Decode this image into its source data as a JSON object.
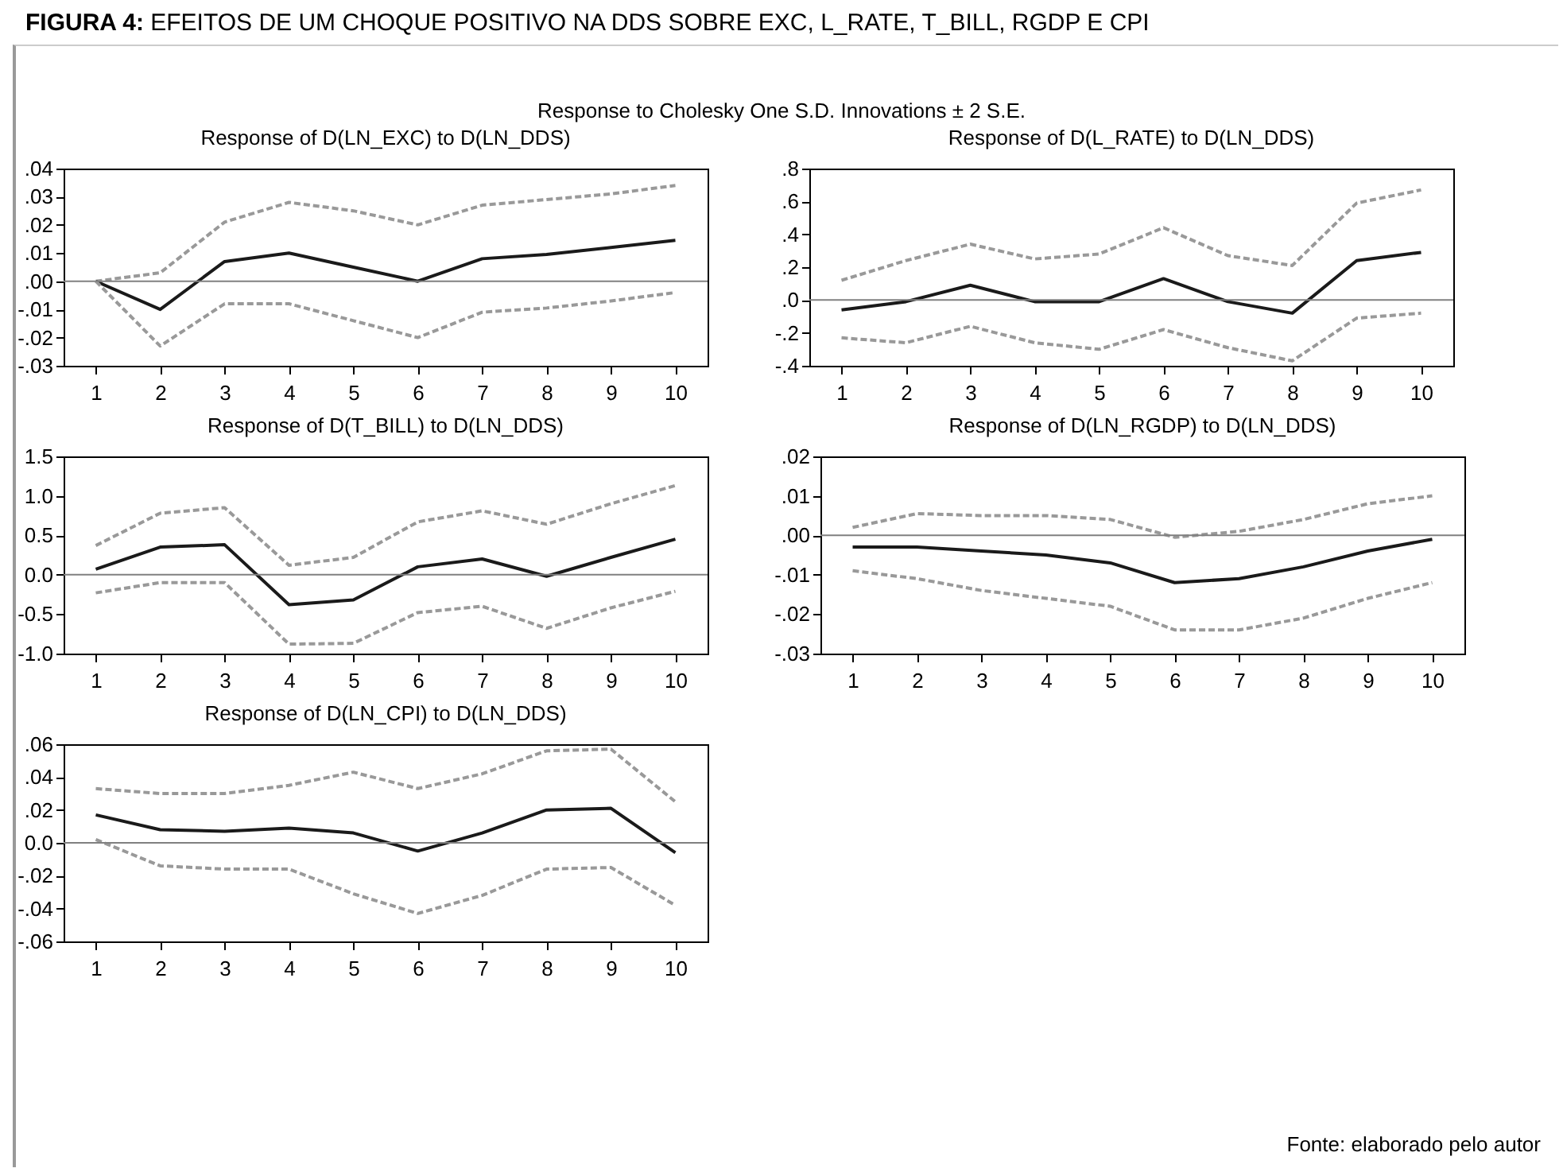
{
  "chart_data": [
    {
      "type": "line",
      "title": "Response of D(LN_EXC) to D(LN_DDS)",
      "annotations": [
        "FIGURA 4: EFEITOS DE UM CHOQUE POSITIVO NA DDS SOBRE EXC, L_RATE, T_BILL, RGDP E CPI",
        "Response to Cholesky One S.D. Innovations ± 2 S.E."
      ],
      "categories": [
        "1",
        "2",
        "3",
        "4",
        "5",
        "6",
        "7",
        "8",
        "9",
        "10"
      ],
      "ylim": [
        -0.03,
        0.04
      ],
      "yticks": [
        {
          "value": -0.03,
          "label": "-.03"
        },
        {
          "value": -0.02,
          "label": "-.02"
        },
        {
          "value": -0.01,
          "label": "-.01"
        },
        {
          "value": 0,
          "label": ".00"
        },
        {
          "value": 0.01,
          "label": ".01"
        },
        {
          "value": 0.02,
          "label": ".02"
        },
        {
          "value": 0.03,
          "label": ".03"
        },
        {
          "value": 0.04,
          "label": ".04"
        }
      ],
      "ref_lines": [
        {
          "axis": "y",
          "value": 0,
          "color": "#808080"
        }
      ],
      "series": [
        {
          "color": "#999999",
          "line_style": "dashed",
          "values": [
            0,
            0.003,
            0.021,
            0.028,
            0.025,
            0.02,
            0.027,
            0.029,
            0.031,
            0.034
          ]
        },
        {
          "color": "#1a1a1a",
          "line_style": "solid",
          "values": [
            0,
            -0.01,
            0.007,
            0.01,
            0.005,
            0.0,
            0.008,
            0.0095,
            0.012,
            0.0145
          ]
        },
        {
          "color": "#999999",
          "line_style": "dashed",
          "values": [
            0,
            -0.023,
            -0.008,
            -0.008,
            -0.014,
            -0.02,
            -0.011,
            -0.0095,
            -0.007,
            -0.004
          ]
        }
      ]
    },
    {
      "type": "line",
      "title": "Response of D(L_RATE) to D(LN_DDS)",
      "categories": [
        "1",
        "2",
        "3",
        "4",
        "5",
        "6",
        "7",
        "8",
        "9",
        "10"
      ],
      "ylim": [
        -0.4,
        0.8
      ],
      "yticks": [
        {
          "value": -0.4,
          "label": "-.4"
        },
        {
          "value": -0.2,
          "label": "-.2"
        },
        {
          "value": 0,
          "label": ".0"
        },
        {
          "value": 0.2,
          "label": ".2"
        },
        {
          "value": 0.4,
          "label": ".4"
        },
        {
          "value": 0.6,
          "label": ".6"
        },
        {
          "value": 0.8,
          "label": ".8"
        }
      ],
      "ref_lines": [
        {
          "axis": "y",
          "value": 0,
          "color": "#808080"
        }
      ],
      "series": [
        {
          "color": "#999999",
          "line_style": "dashed",
          "values": [
            0.12,
            0.24,
            0.34,
            0.25,
            0.28,
            0.44,
            0.27,
            0.21,
            0.59,
            0.67
          ]
        },
        {
          "color": "#1a1a1a",
          "line_style": "solid",
          "values": [
            -0.06,
            -0.01,
            0.09,
            -0.01,
            -0.01,
            0.13,
            -0.01,
            -0.08,
            0.24,
            0.29
          ]
        },
        {
          "color": "#999999",
          "line_style": "dashed",
          "values": [
            -0.23,
            -0.26,
            -0.16,
            -0.26,
            -0.3,
            -0.18,
            -0.29,
            -0.37,
            -0.11,
            -0.08
          ]
        }
      ]
    },
    {
      "type": "line",
      "title": "Response of D(T_BILL) to D(LN_DDS)",
      "categories": [
        "1",
        "2",
        "3",
        "4",
        "5",
        "6",
        "7",
        "8",
        "9",
        "10"
      ],
      "ylim": [
        -1.0,
        1.5
      ],
      "yticks": [
        {
          "value": -1.0,
          "label": "-1.0"
        },
        {
          "value": -0.5,
          "label": "-0.5"
        },
        {
          "value": 0,
          "label": "0.0"
        },
        {
          "value": 0.5,
          "label": "0.5"
        },
        {
          "value": 1.0,
          "label": "1.0"
        },
        {
          "value": 1.5,
          "label": "1.5"
        }
      ],
      "ref_lines": [
        {
          "axis": "y",
          "value": 0,
          "color": "#808080"
        }
      ],
      "series": [
        {
          "color": "#999999",
          "line_style": "dashed",
          "values": [
            0.37,
            0.78,
            0.85,
            0.12,
            0.22,
            0.67,
            0.81,
            0.64,
            0.9,
            1.13
          ]
        },
        {
          "color": "#1a1a1a",
          "line_style": "solid",
          "values": [
            0.07,
            0.35,
            0.38,
            -0.38,
            -0.32,
            0.1,
            0.2,
            -0.02,
            0.22,
            0.45
          ]
        },
        {
          "color": "#999999",
          "line_style": "dashed",
          "values": [
            -0.23,
            -0.1,
            -0.1,
            -0.88,
            -0.87,
            -0.48,
            -0.4,
            -0.68,
            -0.42,
            -0.21
          ]
        }
      ]
    },
    {
      "type": "line",
      "title": "Response of D(LN_RGDP) to D(LN_DDS)",
      "categories": [
        "1",
        "2",
        "3",
        "4",
        "5",
        "6",
        "7",
        "8",
        "9",
        "10"
      ],
      "ylim": [
        -0.03,
        0.02
      ],
      "yticks": [
        {
          "value": -0.03,
          "label": "-.03"
        },
        {
          "value": -0.02,
          "label": "-.02"
        },
        {
          "value": -0.01,
          "label": "-.01"
        },
        {
          "value": 0,
          "label": ".00"
        },
        {
          "value": 0.01,
          "label": ".01"
        },
        {
          "value": 0.02,
          "label": ".02"
        }
      ],
      "ref_lines": [
        {
          "axis": "y",
          "value": 0,
          "color": "#808080"
        }
      ],
      "series": [
        {
          "color": "#999999",
          "line_style": "dashed",
          "values": [
            0.002,
            0.0055,
            0.005,
            0.005,
            0.004,
            -0.0005,
            0.001,
            0.004,
            0.008,
            0.01
          ]
        },
        {
          "color": "#1a1a1a",
          "line_style": "solid",
          "values": [
            -0.003,
            -0.003,
            -0.004,
            -0.005,
            -0.007,
            -0.012,
            -0.011,
            -0.008,
            -0.004,
            -0.001
          ]
        },
        {
          "color": "#999999",
          "line_style": "dashed",
          "values": [
            -0.009,
            -0.011,
            -0.014,
            -0.016,
            -0.018,
            -0.024,
            -0.024,
            -0.021,
            -0.016,
            -0.012
          ]
        }
      ]
    },
    {
      "type": "line",
      "title": "Response of D(LN_CPI) to D(LN_DDS)",
      "annotations": [
        "Fonte: elaborado pelo autor"
      ],
      "categories": [
        "1",
        "2",
        "3",
        "4",
        "5",
        "6",
        "7",
        "8",
        "9",
        "10"
      ],
      "ylim": [
        -0.06,
        0.06
      ],
      "yticks": [
        {
          "value": -0.06,
          "label": "-.06"
        },
        {
          "value": -0.04,
          "label": "-.04"
        },
        {
          "value": -0.02,
          "label": "-.02"
        },
        {
          "value": 0,
          "label": "0.0"
        },
        {
          "value": 0.02,
          "label": ".02"
        },
        {
          "value": 0.04,
          "label": ".04"
        },
        {
          "value": 0.06,
          "label": ".06"
        }
      ],
      "ref_lines": [
        {
          "axis": "y",
          "value": 0,
          "color": "#808080"
        }
      ],
      "series": [
        {
          "color": "#999999",
          "line_style": "dashed",
          "values": [
            0.033,
            0.03,
            0.03,
            0.035,
            0.043,
            0.033,
            0.042,
            0.056,
            0.057,
            0.025
          ]
        },
        {
          "color": "#1a1a1a",
          "line_style": "solid",
          "values": [
            0.017,
            0.008,
            0.007,
            0.009,
            0.006,
            -0.005,
            0.006,
            0.02,
            0.021,
            -0.006
          ]
        },
        {
          "color": "#999999",
          "line_style": "dashed",
          "values": [
            0.002,
            -0.014,
            -0.016,
            -0.016,
            -0.031,
            -0.043,
            -0.032,
            -0.016,
            -0.015,
            -0.038
          ]
        }
      ]
    }
  ]
}
